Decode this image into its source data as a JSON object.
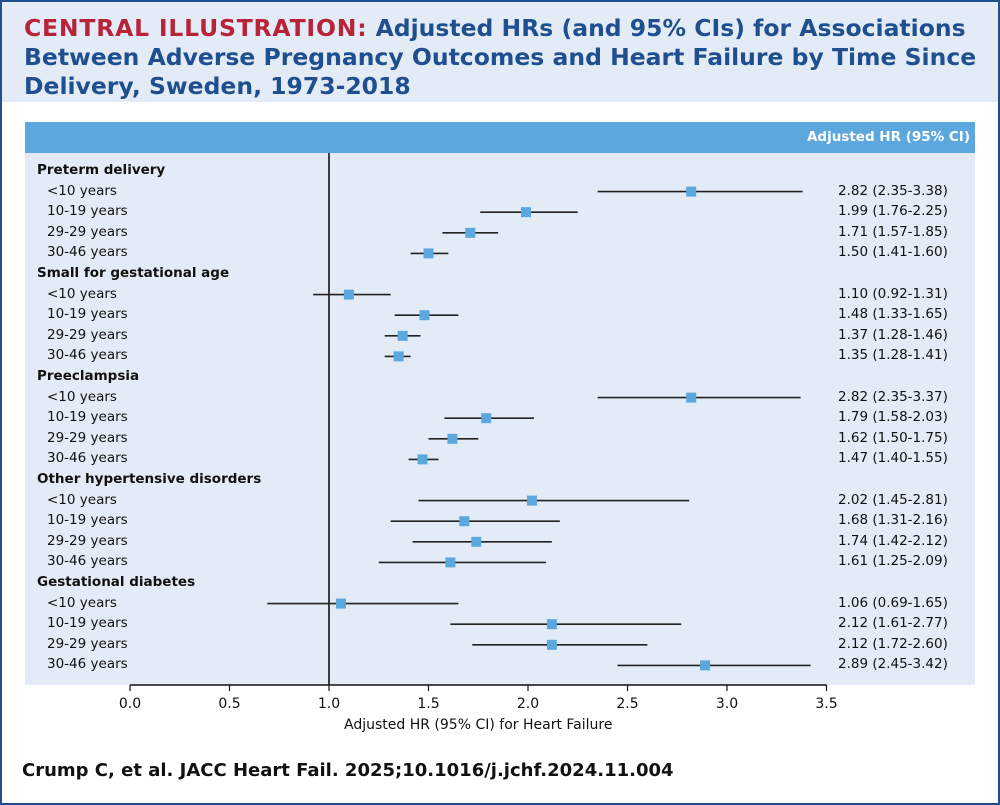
{
  "header": {
    "title_prefix": "CENTRAL ILLUSTRATION:",
    "title_text": " Adjusted HRs (and 95% CIs) for Associations Between Adverse Pregnancy Outcomes and Heart Failure by Time Since Delivery, Sweden, 1973-2018"
  },
  "citation": "Crump C, et al. JACC Heart Fail. 2025;10.1016/j.jchf.2024.11.004",
  "colors": {
    "header_bg": "#e3ecf6",
    "title_blue": "#1f4f8f",
    "title_red": "#b8233a",
    "column_header_bg": "#5ca7de",
    "marker": "#5ca7de"
  },
  "chart_data": {
    "type": "forest",
    "column_header": "Adjusted HR (95% CI)",
    "xlabel": "Adjusted HR (95% CI) for Heart Failure",
    "xlim": [
      0,
      3.5
    ],
    "xticks": [
      "0.0",
      "0.5",
      "1.0",
      "1.5",
      "2.0",
      "2.5",
      "3.0",
      "3.5"
    ],
    "reference_line": 1.0,
    "groups": [
      {
        "name": "Preterm delivery",
        "rows": [
          {
            "label": "<10 years",
            "hr": 2.82,
            "lo": 2.35,
            "hi": 3.38,
            "text": "2.82 (2.35-3.38)"
          },
          {
            "label": "10-19 years",
            "hr": 1.99,
            "lo": 1.76,
            "hi": 2.25,
            "text": "1.99 (1.76-2.25)"
          },
          {
            "label": "29-29 years",
            "hr": 1.71,
            "lo": 1.57,
            "hi": 1.85,
            "text": "1.71 (1.57-1.85)"
          },
          {
            "label": "30-46 years",
            "hr": 1.5,
            "lo": 1.41,
            "hi": 1.6,
            "text": "1.50 (1.41-1.60)"
          }
        ]
      },
      {
        "name": "Small for gestational age",
        "rows": [
          {
            "label": "<10 years",
            "hr": 1.1,
            "lo": 0.92,
            "hi": 1.31,
            "text": "1.10 (0.92-1.31)"
          },
          {
            "label": "10-19 years",
            "hr": 1.48,
            "lo": 1.33,
            "hi": 1.65,
            "text": "1.48 (1.33-1.65)"
          },
          {
            "label": "29-29 years",
            "hr": 1.37,
            "lo": 1.28,
            "hi": 1.46,
            "text": "1.37 (1.28-1.46)"
          },
          {
            "label": "30-46 years",
            "hr": 1.35,
            "lo": 1.28,
            "hi": 1.41,
            "text": "1.35 (1.28-1.41)"
          }
        ]
      },
      {
        "name": "Preeclampsia",
        "rows": [
          {
            "label": "<10 years",
            "hr": 2.82,
            "lo": 2.35,
            "hi": 3.37,
            "text": "2.82 (2.35-3.37)"
          },
          {
            "label": "10-19 years",
            "hr": 1.79,
            "lo": 1.58,
            "hi": 2.03,
            "text": "1.79 (1.58-2.03)"
          },
          {
            "label": "29-29 years",
            "hr": 1.62,
            "lo": 1.5,
            "hi": 1.75,
            "text": "1.62 (1.50-1.75)"
          },
          {
            "label": "30-46 years",
            "hr": 1.47,
            "lo": 1.4,
            "hi": 1.55,
            "text": "1.47 (1.40-1.55)"
          }
        ]
      },
      {
        "name": "Other hypertensive disorders",
        "rows": [
          {
            "label": "<10 years",
            "hr": 2.02,
            "lo": 1.45,
            "hi": 2.81,
            "text": "2.02 (1.45-2.81)"
          },
          {
            "label": "10-19 years",
            "hr": 1.68,
            "lo": 1.31,
            "hi": 2.16,
            "text": "1.68 (1.31-2.16)"
          },
          {
            "label": "29-29 years",
            "hr": 1.74,
            "lo": 1.42,
            "hi": 2.12,
            "text": "1.74 (1.42-2.12)"
          },
          {
            "label": "30-46 years",
            "hr": 1.61,
            "lo": 1.25,
            "hi": 2.09,
            "text": "1.61 (1.25-2.09)"
          }
        ]
      },
      {
        "name": "Gestational diabetes",
        "rows": [
          {
            "label": "<10 years",
            "hr": 1.06,
            "lo": 0.69,
            "hi": 1.65,
            "text": "1.06 (0.69-1.65)"
          },
          {
            "label": "10-19 years",
            "hr": 2.12,
            "lo": 1.61,
            "hi": 2.77,
            "text": "2.12 (1.61-2.77)"
          },
          {
            "label": "29-29 years",
            "hr": 2.12,
            "lo": 1.72,
            "hi": 2.6,
            "text": "2.12 (1.72-2.60)"
          },
          {
            "label": "30-46 years",
            "hr": 2.89,
            "lo": 2.45,
            "hi": 3.42,
            "text": "2.89 (2.45-3.42)"
          }
        ]
      }
    ]
  }
}
